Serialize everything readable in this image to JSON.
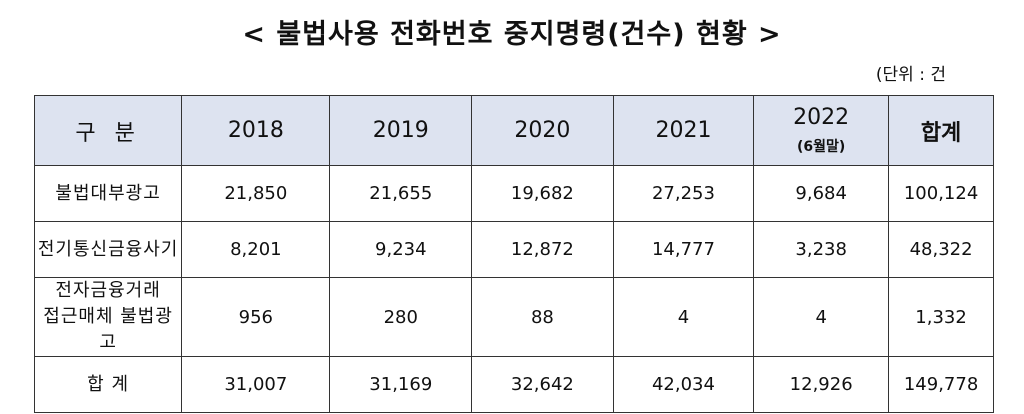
{
  "title": "< 불법사용 전화번호 중지명령(건수) 현황 >",
  "unit": "(단위 : 건",
  "table": {
    "header": {
      "category": "구 분",
      "years": [
        "2018",
        "2019",
        "2020",
        "2021",
        "2022"
      ],
      "year_note": "(6월말)",
      "total": "합계"
    },
    "rows": [
      {
        "label_line1": "불법대부광고",
        "label_line2": "",
        "values": [
          "21,850",
          "21,655",
          "19,682",
          "27,253",
          "9,684",
          "100,124"
        ]
      },
      {
        "label_line1": "전기통신금융사기",
        "label_line2": "",
        "values": [
          "8,201",
          "9,234",
          "12,872",
          "14,777",
          "3,238",
          "48,322"
        ]
      },
      {
        "label_line1": "전자금융거래",
        "label_line2": "접근매체 불법광고",
        "values": [
          "956",
          "280",
          "88",
          "4",
          "4",
          "1,332"
        ]
      },
      {
        "label_line1": "합 계",
        "label_line2": "",
        "values": [
          "31,007",
          "31,169",
          "32,642",
          "42,034",
          "12,926",
          "149,778"
        ]
      }
    ]
  }
}
